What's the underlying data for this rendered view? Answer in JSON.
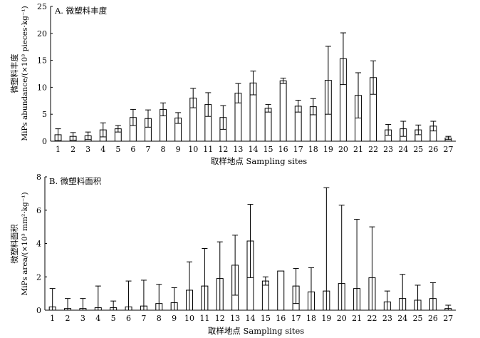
{
  "chart_data": [
    {
      "type": "bar",
      "title": "A. 微塑料丰度",
      "xlabel": "取样地点 Sampling sites",
      "ylabel_cn": "微塑料丰度",
      "ylabel_en": "MiPs abundance/(×10³ pieces·kg⁻¹)",
      "ylim": [
        0,
        25
      ],
      "yticks": [
        0,
        5,
        10,
        15,
        20,
        25
      ],
      "categories": [
        "1",
        "2",
        "3",
        "4",
        "5",
        "6",
        "7",
        "8",
        "9",
        "10",
        "11",
        "12",
        "13",
        "14",
        "15",
        "16",
        "17",
        "18",
        "19",
        "20",
        "21",
        "22",
        "23",
        "24",
        "25",
        "26",
        "27"
      ],
      "values": [
        1.2,
        0.9,
        1.0,
        2.1,
        2.3,
        4.4,
        4.2,
        5.9,
        4.3,
        8.0,
        6.8,
        4.4,
        8.9,
        10.8,
        6.1,
        11.2,
        6.5,
        6.4,
        11.3,
        15.3,
        8.5,
        11.8,
        2.1,
        2.3,
        2.1,
        2.8,
        0.6
      ],
      "errors": [
        1.1,
        0.7,
        0.7,
        1.3,
        0.6,
        1.5,
        1.6,
        1.2,
        1.0,
        1.8,
        2.2,
        2.2,
        1.8,
        2.2,
        0.7,
        0.5,
        1.1,
        1.5,
        6.3,
        4.8,
        4.2,
        3.1,
        1.0,
        1.4,
        0.9,
        0.9,
        0.3
      ],
      "legend": "none",
      "grid": false
    },
    {
      "type": "bar",
      "title": "B. 微塑料面积",
      "xlabel": "取样地点 Sampling sites",
      "ylabel_cn": "微塑料面积",
      "ylabel_en": "MiPs area/(×10³ mm²·kg⁻¹)",
      "ylim": [
        0,
        8
      ],
      "yticks": [
        0,
        2,
        4,
        6,
        8
      ],
      "categories": [
        "1",
        "2",
        "3",
        "4",
        "5",
        "6",
        "7",
        "8",
        "9",
        "10",
        "11",
        "12",
        "13",
        "14",
        "15",
        "16",
        "17",
        "18",
        "19",
        "20",
        "21",
        "22",
        "23",
        "24",
        "25",
        "26",
        "27"
      ],
      "values": [
        0.2,
        0.1,
        0.1,
        0.15,
        0.15,
        0.2,
        0.25,
        0.4,
        0.45,
        1.2,
        1.45,
        1.9,
        2.7,
        4.15,
        1.75,
        2.35,
        1.45,
        1.1,
        1.15,
        1.6,
        1.3,
        1.95,
        0.5,
        0.7,
        0.6,
        0.7,
        0.1
      ],
      "errors": [
        1.1,
        0.6,
        0.6,
        1.3,
        0.4,
        1.55,
        1.55,
        1.15,
        0.9,
        1.7,
        2.25,
        2.2,
        1.8,
        2.2,
        0.25,
        0.0,
        1.05,
        1.45,
        6.2,
        4.7,
        4.15,
        3.05,
        0.65,
        1.45,
        0.9,
        0.95,
        0.2
      ],
      "legend": "none",
      "grid": false
    }
  ]
}
